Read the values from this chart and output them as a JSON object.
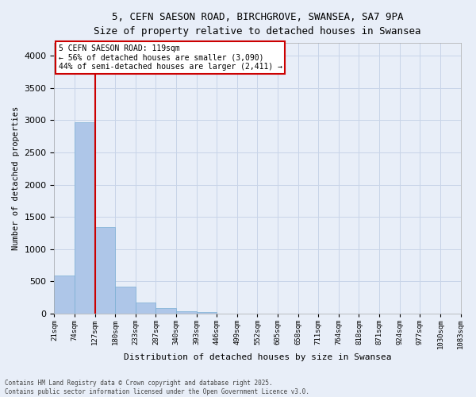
{
  "title_line1": "5, CEFN SAESON ROAD, BIRCHGROVE, SWANSEA, SA7 9PA",
  "title_line2": "Size of property relative to detached houses in Swansea",
  "xlabel": "Distribution of detached houses by size in Swansea",
  "ylabel": "Number of detached properties",
  "bar_values": [
    590,
    2970,
    1340,
    420,
    170,
    80,
    40,
    20,
    0,
    0,
    0,
    0,
    0,
    0,
    0,
    0,
    0,
    0,
    0,
    0
  ],
  "x_labels": [
    "21sqm",
    "74sqm",
    "127sqm",
    "180sqm",
    "233sqm",
    "287sqm",
    "340sqm",
    "393sqm",
    "446sqm",
    "499sqm",
    "552sqm",
    "605sqm",
    "658sqm",
    "711sqm",
    "764sqm",
    "818sqm",
    "871sqm",
    "924sqm",
    "977sqm",
    "1030sqm",
    "1083sqm"
  ],
  "bar_color": "#aec6e8",
  "bar_edge_color": "#7aafd4",
  "annotation_line1": "5 CEFN SAESON ROAD: 119sqm",
  "annotation_line2": "← 56% of detached houses are smaller (3,090)",
  "annotation_line3": "44% of semi-detached houses are larger (2,411) →",
  "annotation_box_facecolor": "#ffffff",
  "annotation_box_edgecolor": "#cc0000",
  "vline_color": "#cc0000",
  "ylim": [
    0,
    4200
  ],
  "yticks": [
    0,
    500,
    1000,
    1500,
    2000,
    2500,
    3000,
    3500,
    4000
  ],
  "grid_color": "#c8d4e8",
  "background_color": "#e8eef8",
  "footer_line1": "Contains HM Land Registry data © Crown copyright and database right 2025.",
  "footer_line2": "Contains public sector information licensed under the Open Government Licence v3.0."
}
